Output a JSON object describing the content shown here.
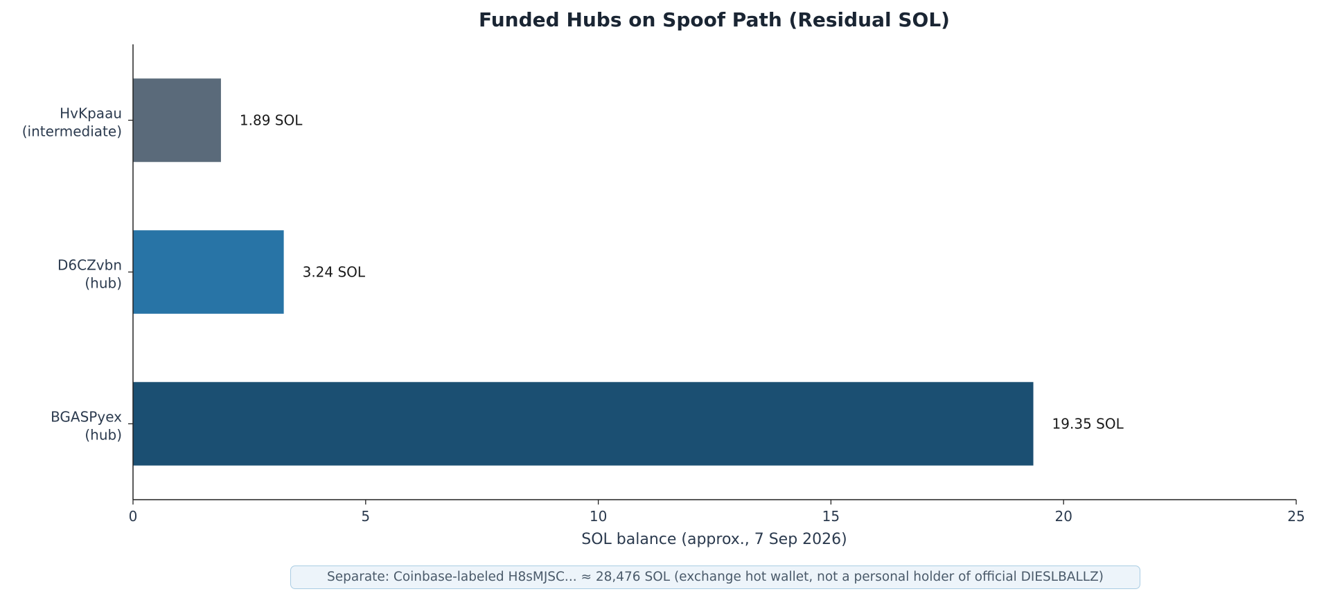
{
  "chart_data": {
    "type": "bar",
    "orientation": "horizontal",
    "title": "Funded Hubs on Spoof Path (Residual SOL)",
    "xlabel": "SOL balance (approx., 7 Sep 2026)",
    "ylabel": "",
    "xlim": [
      0,
      25
    ],
    "xticks": [
      "0",
      "5",
      "10",
      "15",
      "20",
      "25"
    ],
    "grid": false,
    "categories": [
      {
        "name": "HvKpaau",
        "role": "(intermediate)"
      },
      {
        "name": "D6CZvbn",
        "role": "(hub)"
      },
      {
        "name": "BGASPyex",
        "role": "(hub)"
      }
    ],
    "values": [
      1.89,
      3.24,
      19.35
    ],
    "data_labels": [
      "1.89 SOL",
      "3.24 SOL",
      "19.35 SOL"
    ],
    "colors": [
      "#5a6a7a",
      "#2874a6",
      "#1b4f72"
    ],
    "annotation": "Separate: Coinbase-labeled H8sMJSC... ≈ 28,476 SOL (exchange hot wallet, not a personal holder of official DIESLBALLZ)"
  }
}
